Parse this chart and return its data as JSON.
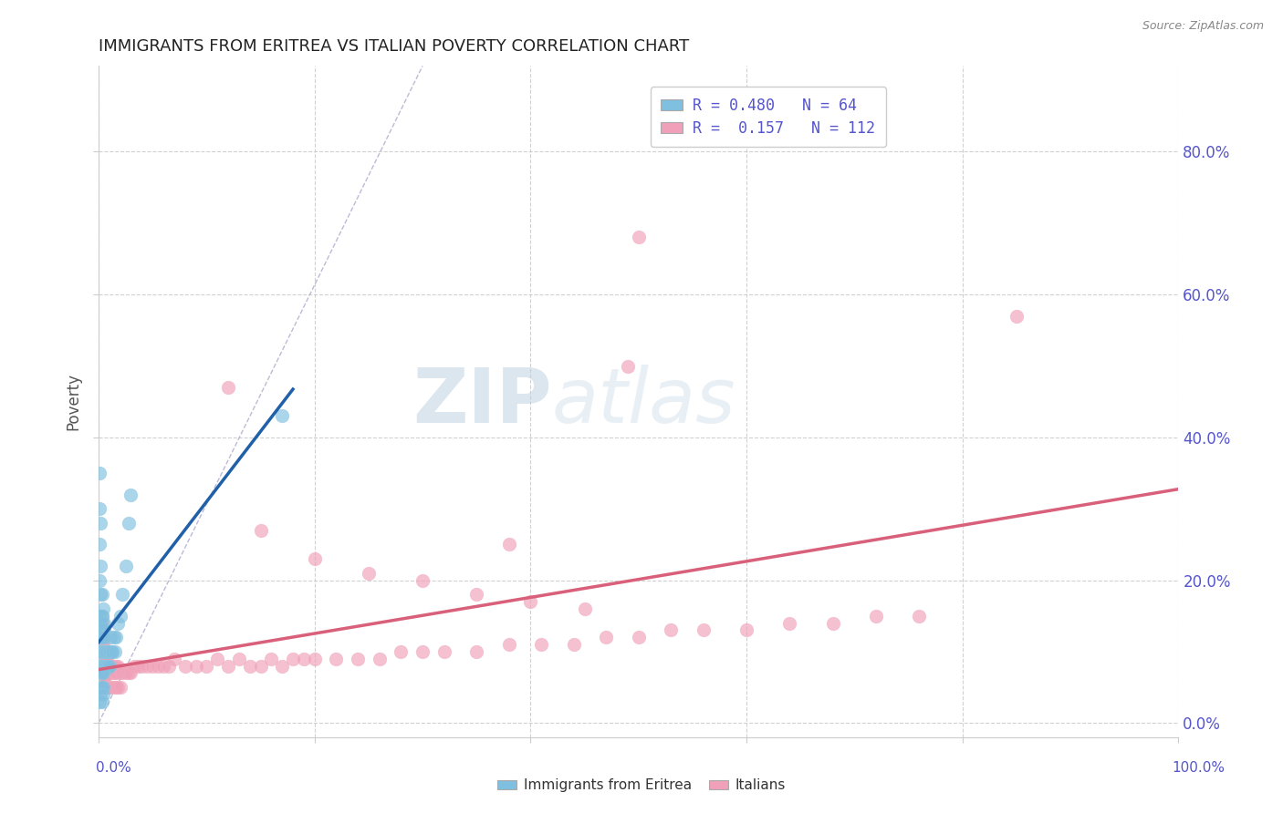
{
  "title": "IMMIGRANTS FROM ERITREA VS ITALIAN POVERTY CORRELATION CHART",
  "source_text": "Source: ZipAtlas.com",
  "ylabel": "Poverty",
  "x_lim": [
    0.0,
    1.0
  ],
  "y_lim": [
    -0.02,
    0.92
  ],
  "y_ticks": [
    0.0,
    0.2,
    0.4,
    0.6,
    0.8
  ],
  "y_tick_labels_right": [
    "0.0%",
    "20.0%",
    "40.0%",
    "60.0%",
    "80.0%"
  ],
  "legend_label_blue": "R = 0.480   N = 64",
  "legend_label_pink": "R =  0.157   N = 112",
  "legend_label_blue_bottom": "Immigrants from Eritrea",
  "legend_label_pink_bottom": "Italians",
  "watermark_zip": "ZIP",
  "watermark_atlas": "atlas",
  "blue_line_color": "#2060a8",
  "pink_line_color": "#d9607a",
  "blue_scatter_color": "#7fbfdf",
  "pink_scatter_color": "#f0a0b8",
  "blue_scatter_edge": "#90c8e0",
  "pink_scatter_edge": "#f0b0c0",
  "title_color": "#222222",
  "title_fontsize": 13,
  "axis_label_color": "#5555cc",
  "tick_label_color": "#5555cc",
  "background_color": "#ffffff",
  "grid_color": "#cccccc",
  "ref_line_color": "#aaaacc",
  "blue_scatter_x": [
    0.001,
    0.001,
    0.001,
    0.001,
    0.002,
    0.002,
    0.002,
    0.002,
    0.003,
    0.003,
    0.003,
    0.003,
    0.004,
    0.004,
    0.004,
    0.005,
    0.005,
    0.005,
    0.006,
    0.006,
    0.007,
    0.007,
    0.008,
    0.008,
    0.009,
    0.009,
    0.01,
    0.01,
    0.011,
    0.012,
    0.013,
    0.014,
    0.015,
    0.016,
    0.018,
    0.02,
    0.022,
    0.025,
    0.028,
    0.03,
    0.002,
    0.002,
    0.003,
    0.003,
    0.004,
    0.004,
    0.001,
    0.001,
    0.002,
    0.002,
    0.003,
    0.003,
    0.004,
    0.004,
    0.005,
    0.005,
    0.001,
    0.001,
    0.002,
    0.17,
    0.001,
    0.002,
    0.003,
    0.004
  ],
  "blue_scatter_y": [
    0.08,
    0.1,
    0.12,
    0.15,
    0.08,
    0.1,
    0.12,
    0.14,
    0.08,
    0.1,
    0.12,
    0.15,
    0.08,
    0.1,
    0.12,
    0.08,
    0.1,
    0.13,
    0.08,
    0.1,
    0.08,
    0.1,
    0.08,
    0.1,
    0.08,
    0.1,
    0.08,
    0.1,
    0.12,
    0.1,
    0.1,
    0.12,
    0.1,
    0.12,
    0.14,
    0.15,
    0.18,
    0.22,
    0.28,
    0.32,
    0.05,
    0.07,
    0.05,
    0.07,
    0.05,
    0.07,
    0.2,
    0.25,
    0.18,
    0.22,
    0.15,
    0.18,
    0.13,
    0.16,
    0.12,
    0.14,
    0.3,
    0.35,
    0.28,
    0.43,
    0.03,
    0.04,
    0.03,
    0.04
  ],
  "pink_scatter_x": [
    0.001,
    0.001,
    0.001,
    0.001,
    0.002,
    0.002,
    0.002,
    0.002,
    0.003,
    0.003,
    0.003,
    0.003,
    0.004,
    0.004,
    0.004,
    0.005,
    0.005,
    0.005,
    0.006,
    0.006,
    0.007,
    0.007,
    0.008,
    0.008,
    0.009,
    0.01,
    0.011,
    0.012,
    0.013,
    0.014,
    0.015,
    0.016,
    0.017,
    0.018,
    0.02,
    0.022,
    0.025,
    0.028,
    0.03,
    0.033,
    0.036,
    0.04,
    0.045,
    0.05,
    0.055,
    0.06,
    0.065,
    0.07,
    0.08,
    0.09,
    0.1,
    0.11,
    0.12,
    0.13,
    0.14,
    0.15,
    0.16,
    0.17,
    0.18,
    0.19,
    0.2,
    0.22,
    0.24,
    0.26,
    0.28,
    0.3,
    0.32,
    0.35,
    0.38,
    0.41,
    0.44,
    0.47,
    0.5,
    0.53,
    0.56,
    0.6,
    0.64,
    0.68,
    0.72,
    0.76,
    0.001,
    0.001,
    0.002,
    0.002,
    0.003,
    0.003,
    0.004,
    0.004,
    0.005,
    0.005,
    0.006,
    0.007,
    0.008,
    0.009,
    0.01,
    0.012,
    0.014,
    0.016,
    0.018,
    0.02,
    0.5,
    0.85,
    0.49,
    0.12,
    0.15,
    0.2,
    0.25,
    0.3,
    0.35,
    0.4,
    0.45,
    0.38
  ],
  "pink_scatter_y": [
    0.08,
    0.1,
    0.12,
    0.15,
    0.08,
    0.1,
    0.12,
    0.14,
    0.07,
    0.09,
    0.11,
    0.14,
    0.07,
    0.09,
    0.11,
    0.07,
    0.09,
    0.12,
    0.07,
    0.09,
    0.07,
    0.09,
    0.07,
    0.09,
    0.07,
    0.07,
    0.07,
    0.08,
    0.07,
    0.08,
    0.07,
    0.08,
    0.07,
    0.08,
    0.07,
    0.07,
    0.07,
    0.07,
    0.07,
    0.08,
    0.08,
    0.08,
    0.08,
    0.08,
    0.08,
    0.08,
    0.08,
    0.09,
    0.08,
    0.08,
    0.08,
    0.09,
    0.08,
    0.09,
    0.08,
    0.08,
    0.09,
    0.08,
    0.09,
    0.09,
    0.09,
    0.09,
    0.09,
    0.09,
    0.1,
    0.1,
    0.1,
    0.1,
    0.11,
    0.11,
    0.11,
    0.12,
    0.12,
    0.13,
    0.13,
    0.13,
    0.14,
    0.14,
    0.15,
    0.15,
    0.05,
    0.06,
    0.05,
    0.06,
    0.05,
    0.06,
    0.05,
    0.06,
    0.05,
    0.06,
    0.05,
    0.05,
    0.05,
    0.05,
    0.05,
    0.05,
    0.05,
    0.05,
    0.05,
    0.05,
    0.68,
    0.57,
    0.5,
    0.47,
    0.27,
    0.23,
    0.21,
    0.2,
    0.18,
    0.17,
    0.16,
    0.25
  ]
}
